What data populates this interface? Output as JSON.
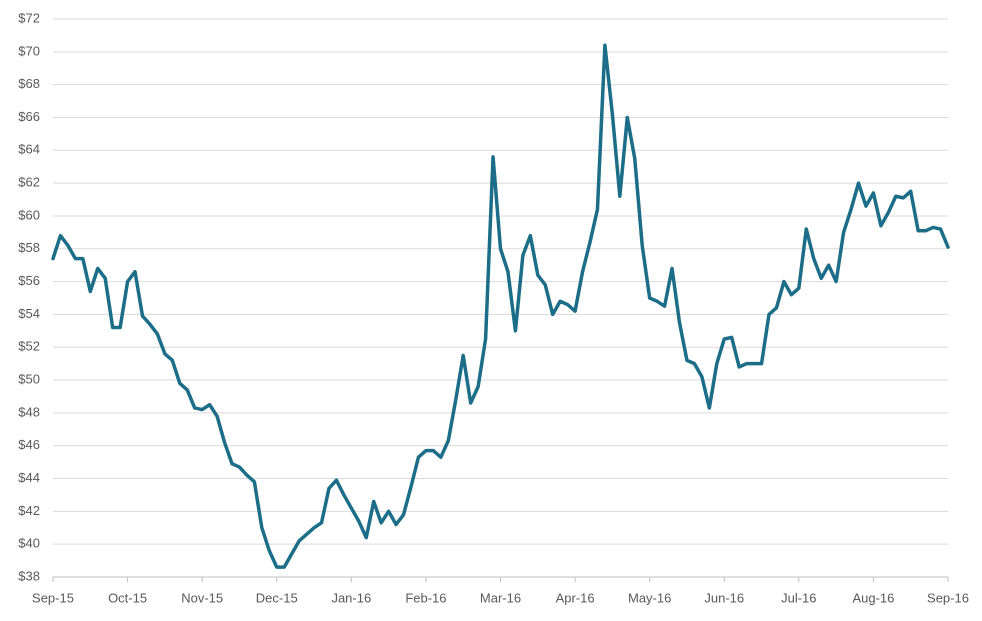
{
  "chart_data": {
    "type": "line",
    "categories": [
      "Sep-15",
      null,
      null,
      null,
      null,
      null,
      null,
      null,
      null,
      null,
      "Oct-15",
      null,
      null,
      null,
      null,
      null,
      null,
      null,
      null,
      null,
      "Nov-15",
      null,
      null,
      null,
      null,
      null,
      null,
      null,
      null,
      null,
      "Dec-15",
      null,
      null,
      null,
      null,
      null,
      null,
      null,
      null,
      null,
      "Jan-16",
      null,
      null,
      null,
      null,
      null,
      null,
      null,
      null,
      null,
      "Feb-16",
      null,
      null,
      null,
      null,
      null,
      null,
      null,
      null,
      null,
      "Mar-16",
      null,
      null,
      null,
      null,
      null,
      null,
      null,
      null,
      null,
      "Apr-16",
      null,
      null,
      null,
      null,
      null,
      null,
      null,
      null,
      null,
      "May-16",
      null,
      null,
      null,
      null,
      null,
      null,
      null,
      null,
      null,
      "Jun-16",
      null,
      null,
      null,
      null,
      null,
      null,
      null,
      null,
      null,
      "Jul-16",
      null,
      null,
      null,
      null,
      null,
      null,
      null,
      null,
      null,
      "Aug-16",
      null,
      null,
      null,
      null,
      null,
      null,
      null,
      null,
      null,
      "Sep-16"
    ],
    "series": [
      {
        "color": "#1c6e88",
        "values": [
          57.4,
          58.8,
          58.2,
          57.4,
          57.4,
          55.4,
          56.8,
          56.2,
          53.2,
          53.2,
          56.0,
          56.6,
          53.9,
          53.4,
          52.8,
          51.6,
          51.2,
          49.8,
          49.4,
          48.3,
          48.2,
          48.5,
          47.8,
          46.2,
          44.9,
          44.7,
          44.2,
          43.8,
          41.0,
          39.6,
          38.6,
          38.6,
          39.4,
          40.2,
          40.6,
          41.0,
          41.3,
          43.4,
          43.9,
          43.0,
          42.2,
          41.4,
          40.4,
          42.6,
          41.3,
          42.0,
          41.2,
          41.8,
          43.5,
          45.3,
          45.7,
          45.7,
          45.3,
          46.3,
          48.8,
          51.5,
          48.6,
          49.6,
          52.5,
          63.6,
          58.0,
          56.6,
          53.0,
          57.6,
          58.8,
          56.4,
          55.8,
          54.0,
          54.8,
          54.6,
          54.2,
          56.6,
          58.4,
          60.4,
          70.4,
          66.2,
          61.2,
          66.0,
          63.5,
          58.2,
          55.0,
          54.8,
          54.5,
          56.8,
          53.5,
          51.2,
          51.0,
          50.2,
          48.3,
          51.0,
          52.5,
          52.6,
          50.8,
          51.0,
          51.0,
          51.0,
          54.0,
          54.4,
          56.0,
          55.2,
          55.6,
          59.2,
          57.4,
          56.2,
          57.0,
          56.0,
          59.0,
          60.4,
          62.0,
          60.6,
          61.4,
          59.4,
          60.2,
          61.2,
          61.1,
          61.5,
          59.1,
          59.1,
          59.3,
          59.2,
          58.1
        ]
      }
    ],
    "ylim": [
      38,
      72
    ],
    "yticks": [
      {
        "value": 38,
        "label": "$38"
      },
      {
        "value": 40,
        "label": "$40"
      },
      {
        "value": 42,
        "label": "$42"
      },
      {
        "value": 44,
        "label": "$44"
      },
      {
        "value": 46,
        "label": "$46"
      },
      {
        "value": 48,
        "label": "$48"
      },
      {
        "value": 50,
        "label": "$50"
      },
      {
        "value": 52,
        "label": "$52"
      },
      {
        "value": 54,
        "label": "$54"
      },
      {
        "value": 56,
        "label": "$56"
      },
      {
        "value": 58,
        "label": "$58"
      },
      {
        "value": 60,
        "label": "$60"
      },
      {
        "value": 62,
        "label": "$62"
      },
      {
        "value": 64,
        "label": "$64"
      },
      {
        "value": 66,
        "label": "$66"
      },
      {
        "value": 68,
        "label": "$68"
      },
      {
        "value": 70,
        "label": "$70"
      },
      {
        "value": 72,
        "label": "$72"
      }
    ],
    "grid": true
  }
}
